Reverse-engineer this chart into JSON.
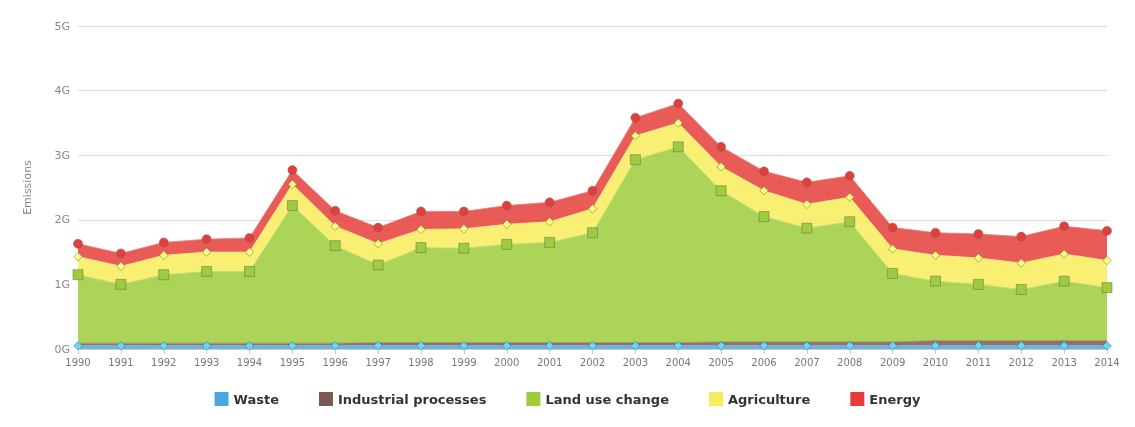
{
  "chart_data": {
    "type": "area",
    "stacked": true,
    "ylabel": "Emissions",
    "categories": [
      "1990",
      "1991",
      "1992",
      "1993",
      "1994",
      "1995",
      "1996",
      "1997",
      "1998",
      "1999",
      "2000",
      "2001",
      "2002",
      "2003",
      "2004",
      "2005",
      "2006",
      "2007",
      "2008",
      "2009",
      "2010",
      "2011",
      "2012",
      "2013",
      "2014"
    ],
    "ylim": [
      0,
      5
    ],
    "yticks": [
      {
        "value": 0,
        "label": "0G"
      },
      {
        "value": 1,
        "label": "1G"
      },
      {
        "value": 2,
        "label": "2G"
      },
      {
        "value": 3,
        "label": "3G"
      },
      {
        "value": 4,
        "label": "4G"
      },
      {
        "value": 5,
        "label": "5G"
      }
    ],
    "grid": "y",
    "legend": "bottom",
    "series": [
      {
        "name": "Waste",
        "color": "#4aa8e0",
        "marker": "diamond",
        "values": [
          0.05,
          0.05,
          0.05,
          0.05,
          0.05,
          0.05,
          0.05,
          0.05,
          0.05,
          0.05,
          0.05,
          0.05,
          0.05,
          0.05,
          0.05,
          0.05,
          0.05,
          0.05,
          0.05,
          0.05,
          0.05,
          0.05,
          0.05,
          0.05,
          0.05
        ]
      },
      {
        "name": "Industrial processes",
        "color": "#7b5a50",
        "marker": "none",
        "values": [
          0.04,
          0.04,
          0.04,
          0.04,
          0.04,
          0.04,
          0.04,
          0.05,
          0.05,
          0.05,
          0.05,
          0.05,
          0.05,
          0.05,
          0.05,
          0.06,
          0.06,
          0.06,
          0.06,
          0.06,
          0.08,
          0.08,
          0.08,
          0.08,
          0.08
        ]
      },
      {
        "name": "Land use change",
        "color": "#9dcc3c",
        "marker": "square",
        "values": [
          1.06,
          0.91,
          1.06,
          1.11,
          1.11,
          2.13,
          1.51,
          1.2,
          1.47,
          1.46,
          1.52,
          1.55,
          1.7,
          2.83,
          3.03,
          2.34,
          1.94,
          1.76,
          1.86,
          1.06,
          0.92,
          0.87,
          0.79,
          0.92,
          0.82
        ]
      },
      {
        "name": "Agriculture",
        "color": "#f7ec5a",
        "marker": "diamond",
        "values": [
          0.28,
          0.28,
          0.3,
          0.3,
          0.3,
          0.33,
          0.3,
          0.33,
          0.28,
          0.3,
          0.31,
          0.32,
          0.37,
          0.37,
          0.37,
          0.37,
          0.4,
          0.37,
          0.38,
          0.38,
          0.4,
          0.41,
          0.41,
          0.42,
          0.42
        ]
      },
      {
        "name": "Energy",
        "color": "#e53e3a",
        "marker": "circle",
        "values": [
          0.2,
          0.2,
          0.2,
          0.2,
          0.22,
          0.22,
          0.24,
          0.25,
          0.28,
          0.27,
          0.29,
          0.3,
          0.28,
          0.28,
          0.3,
          0.31,
          0.3,
          0.34,
          0.33,
          0.33,
          0.35,
          0.37,
          0.41,
          0.43,
          0.46
        ]
      }
    ]
  }
}
